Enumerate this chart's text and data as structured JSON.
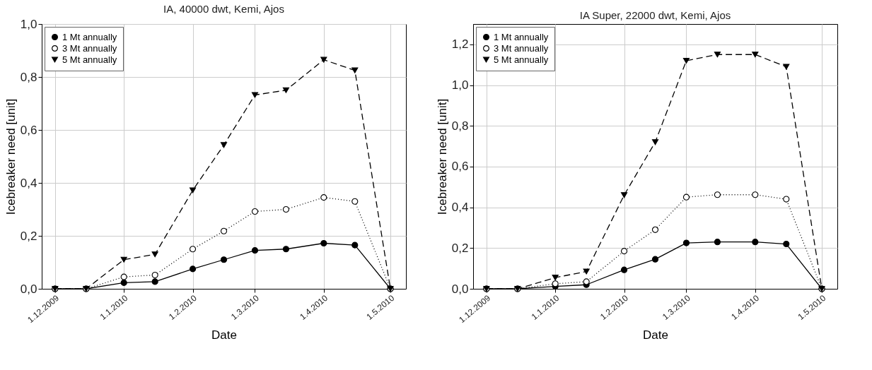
{
  "chart_data": [
    {
      "type": "line",
      "title": "IA, 40000 dwt, Kemi, Ajos",
      "xlabel": "Date",
      "ylabel": "Icebreaker need  [unit]",
      "x": [
        "2009-12-01",
        "2009-12-15",
        "2010-01-01",
        "2010-01-15",
        "2010-02-01",
        "2010-02-15",
        "2010-03-01",
        "2010-03-15",
        "2010-04-01",
        "2010-04-15",
        "2010-05-01"
      ],
      "series": [
        {
          "name": "1 Mt annually",
          "color": "#000000",
          "marker": "circle",
          "line_style": "solid",
          "values": [
            0,
            0,
            0.023,
            0.027,
            0.075,
            0.11,
            0.145,
            0.15,
            0.172,
            0.165,
            0
          ]
        },
        {
          "name": "3 Mt annually",
          "color": "#000000",
          "marker": "circle",
          "line_style": "dotted",
          "values": [
            0,
            0,
            0.045,
            0.052,
            0.15,
            0.218,
            0.292,
            0.3,
            0.345,
            0.33,
            0
          ]
        },
        {
          "name": "5 Mt annually",
          "color": "#000000",
          "marker": "triangle",
          "line_style": "dashed",
          "values": [
            0,
            0,
            0.11,
            0.13,
            0.372,
            0.543,
            0.732,
            0.75,
            0.865,
            0.825,
            0
          ]
        }
      ],
      "xlim": [
        "2009-11-25",
        "2010-05-08"
      ],
      "xticks": [
        {
          "value": "2009-12-01",
          "label": "1.12.2009"
        },
        {
          "value": "2010-01-01",
          "label": "1.1.2010"
        },
        {
          "value": "2010-02-01",
          "label": "1.2.2010"
        },
        {
          "value": "2010-03-01",
          "label": "1.3.2010"
        },
        {
          "value": "2010-04-01",
          "label": "1.4.2010"
        },
        {
          "value": "2010-05-01",
          "label": "1.5.2010"
        }
      ],
      "ylim": [
        0,
        1.0
      ],
      "yticks": [
        {
          "value": 0,
          "label": "0,0"
        },
        {
          "value": 0.2,
          "label": "0,2"
        },
        {
          "value": 0.4,
          "label": "0,4"
        },
        {
          "value": 0.6,
          "label": "0,6"
        },
        {
          "value": 0.8,
          "label": "0,8"
        },
        {
          "value": 1.0,
          "label": "1,0"
        }
      ],
      "grid": true,
      "legend": "top left"
    },
    {
      "type": "line",
      "title": "IA Super, 22000 dwt, Kemi, Ajos",
      "xlabel": "Date",
      "ylabel": "Icebreaker need  [unit]",
      "x": [
        "2009-12-01",
        "2009-12-15",
        "2010-01-01",
        "2010-01-15",
        "2010-02-01",
        "2010-02-15",
        "2010-03-01",
        "2010-03-15",
        "2010-04-01",
        "2010-04-15",
        "2010-05-01"
      ],
      "series": [
        {
          "name": "1 Mt annually",
          "color": "#000000",
          "marker": "circle",
          "line_style": "solid",
          "values": [
            0,
            0,
            0.012,
            0.02,
            0.093,
            0.145,
            0.225,
            0.23,
            0.23,
            0.22,
            0
          ]
        },
        {
          "name": "3 Mt annually",
          "color": "#000000",
          "marker": "circle",
          "line_style": "dotted",
          "values": [
            0,
            0,
            0.025,
            0.035,
            0.185,
            0.29,
            0.45,
            0.462,
            0.462,
            0.44,
            0
          ]
        },
        {
          "name": "5 Mt annually",
          "color": "#000000",
          "marker": "triangle",
          "line_style": "dashed",
          "values": [
            0,
            0,
            0.055,
            0.085,
            0.46,
            0.72,
            1.12,
            1.15,
            1.15,
            1.09,
            0
          ]
        }
      ],
      "xlim": [
        "2009-11-25",
        "2010-05-08"
      ],
      "xticks": [
        {
          "value": "2009-12-01",
          "label": "1.12.2009"
        },
        {
          "value": "2010-01-01",
          "label": "1.1.2010"
        },
        {
          "value": "2010-02-01",
          "label": "1.2.2010"
        },
        {
          "value": "2010-03-01",
          "label": "1.3.2010"
        },
        {
          "value": "2010-04-01",
          "label": "1.4.2010"
        },
        {
          "value": "2010-05-01",
          "label": "1.5.2010"
        }
      ],
      "ylim": [
        0,
        1.3
      ],
      "yticks": [
        {
          "value": 0,
          "label": "0,0"
        },
        {
          "value": 0.2,
          "label": "0,2"
        },
        {
          "value": 0.4,
          "label": "0,4"
        },
        {
          "value": 0.6,
          "label": "0,6"
        },
        {
          "value": 0.8,
          "label": "0,8"
        },
        {
          "value": 1.0,
          "label": "1,0"
        },
        {
          "value": 1.2,
          "label": "1,2"
        }
      ],
      "grid": true,
      "legend": "top left"
    }
  ]
}
